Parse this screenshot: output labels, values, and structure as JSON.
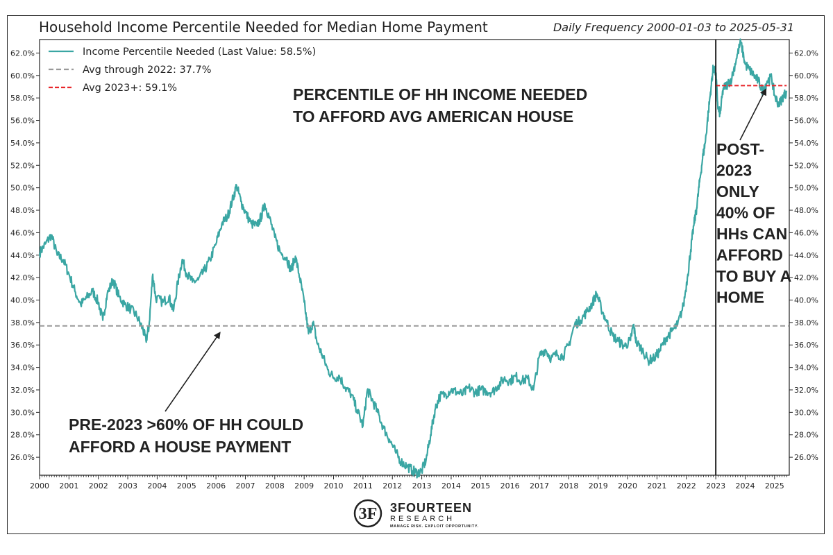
{
  "chart_data": {
    "type": "line",
    "title": "Household Income Percentile Needed for Median Home Payment",
    "subtitle": "Daily Frequency 2000-01-03 to 2025-05-31",
    "x_range": [
      "2000-01-03",
      "2025-05-31"
    ],
    "x_ticks": [
      "2000",
      "2001",
      "2002",
      "2003",
      "2004",
      "2005",
      "2006",
      "2007",
      "2008",
      "2009",
      "2010",
      "2011",
      "2012",
      "2013",
      "2014",
      "2015",
      "2016",
      "2017",
      "2018",
      "2019",
      "2020",
      "2021",
      "2022",
      "2023",
      "2024",
      "2025"
    ],
    "ylim": [
      24.4,
      63.2
    ],
    "y_ticks": [
      "26.0%",
      "28.0%",
      "30.0%",
      "32.0%",
      "34.0%",
      "36.0%",
      "38.0%",
      "40.0%",
      "42.0%",
      "44.0%",
      "46.0%",
      "48.0%",
      "50.0%",
      "52.0%",
      "54.0%",
      "56.0%",
      "58.0%",
      "60.0%",
      "62.0%"
    ],
    "y_tick_values": [
      26,
      28,
      30,
      32,
      34,
      36,
      38,
      40,
      42,
      44,
      46,
      48,
      50,
      52,
      54,
      56,
      58,
      60,
      62
    ],
    "y_axis_both_sides": true,
    "grid": false,
    "legend_position": "top-left",
    "series": [
      {
        "name": "Income Percentile Needed (Last Value: 58.5%)",
        "color": "#3aa6a3",
        "style": "solid",
        "points": [
          [
            2000.0,
            44.2
          ],
          [
            2000.2,
            45.0
          ],
          [
            2000.4,
            45.8
          ],
          [
            2000.6,
            44.0
          ],
          [
            2000.8,
            43.6
          ],
          [
            2001.0,
            42.3
          ],
          [
            2001.2,
            40.8
          ],
          [
            2001.4,
            39.6
          ],
          [
            2001.6,
            40.2
          ],
          [
            2001.8,
            40.8
          ],
          [
            2002.0,
            39.8
          ],
          [
            2002.15,
            38.2
          ],
          [
            2002.3,
            40.5
          ],
          [
            2002.5,
            41.8
          ],
          [
            2002.7,
            40.3
          ],
          [
            2002.9,
            39.6
          ],
          [
            2003.1,
            39.2
          ],
          [
            2003.3,
            38.6
          ],
          [
            2003.5,
            37.5
          ],
          [
            2003.62,
            36.4
          ],
          [
            2003.72,
            37.6
          ],
          [
            2003.85,
            42.3
          ],
          [
            2003.95,
            40.2
          ],
          [
            2004.2,
            39.8
          ],
          [
            2004.4,
            40.3
          ],
          [
            2004.55,
            39.0
          ],
          [
            2004.7,
            41.5
          ],
          [
            2004.85,
            43.6
          ],
          [
            2005.0,
            42.4
          ],
          [
            2005.2,
            41.6
          ],
          [
            2005.4,
            41.8
          ],
          [
            2005.6,
            42.6
          ],
          [
            2005.8,
            43.6
          ],
          [
            2006.0,
            45.0
          ],
          [
            2006.2,
            46.8
          ],
          [
            2006.4,
            47.5
          ],
          [
            2006.55,
            48.8
          ],
          [
            2006.7,
            50.2
          ],
          [
            2006.85,
            48.8
          ],
          [
            2007.0,
            47.8
          ],
          [
            2007.2,
            46.8
          ],
          [
            2007.4,
            46.6
          ],
          [
            2007.55,
            47.5
          ],
          [
            2007.65,
            48.6
          ],
          [
            2007.8,
            47.5
          ],
          [
            2008.0,
            45.6
          ],
          [
            2008.2,
            44.2
          ],
          [
            2008.4,
            43.8
          ],
          [
            2008.55,
            42.6
          ],
          [
            2008.7,
            43.9
          ],
          [
            2008.85,
            42.0
          ],
          [
            2009.0,
            39.8
          ],
          [
            2009.15,
            37.0
          ],
          [
            2009.3,
            38.0
          ],
          [
            2009.45,
            36.1
          ],
          [
            2009.6,
            35.2
          ],
          [
            2009.8,
            33.8
          ],
          [
            2010.0,
            33.1
          ],
          [
            2010.2,
            33.2
          ],
          [
            2010.4,
            32.2
          ],
          [
            2010.6,
            31.6
          ],
          [
            2010.8,
            30.2
          ],
          [
            2011.0,
            28.8
          ],
          [
            2011.15,
            32.0
          ],
          [
            2011.3,
            31.2
          ],
          [
            2011.5,
            30.0
          ],
          [
            2011.7,
            28.6
          ],
          [
            2011.9,
            27.6
          ],
          [
            2012.1,
            26.5
          ],
          [
            2012.3,
            25.6
          ],
          [
            2012.5,
            25.2
          ],
          [
            2012.7,
            24.8
          ],
          [
            2012.85,
            24.6
          ],
          [
            2013.0,
            24.8
          ],
          [
            2013.15,
            25.8
          ],
          [
            2013.3,
            28.0
          ],
          [
            2013.45,
            30.2
          ],
          [
            2013.6,
            31.4
          ],
          [
            2013.8,
            31.6
          ],
          [
            2014.0,
            32.0
          ],
          [
            2014.2,
            31.8
          ],
          [
            2014.4,
            31.6
          ],
          [
            2014.6,
            32.2
          ],
          [
            2014.8,
            31.8
          ],
          [
            2015.0,
            32.0
          ],
          [
            2015.2,
            31.9
          ],
          [
            2015.4,
            31.8
          ],
          [
            2015.6,
            32.4
          ],
          [
            2015.8,
            33.0
          ],
          [
            2016.0,
            32.8
          ],
          [
            2016.2,
            33.2
          ],
          [
            2016.4,
            32.8
          ],
          [
            2016.6,
            33.0
          ],
          [
            2016.8,
            32.0
          ],
          [
            2017.0,
            35.0
          ],
          [
            2017.2,
            35.6
          ],
          [
            2017.4,
            34.8
          ],
          [
            2017.6,
            35.2
          ],
          [
            2017.8,
            35.0
          ],
          [
            2018.0,
            36.0
          ],
          [
            2018.2,
            37.8
          ],
          [
            2018.4,
            38.2
          ],
          [
            2018.6,
            38.9
          ],
          [
            2018.8,
            39.7
          ],
          [
            2018.95,
            40.6
          ],
          [
            2019.1,
            39.3
          ],
          [
            2019.3,
            38.0
          ],
          [
            2019.5,
            36.8
          ],
          [
            2019.7,
            36.3
          ],
          [
            2019.9,
            35.9
          ],
          [
            2020.1,
            36.4
          ],
          [
            2020.2,
            37.8
          ],
          [
            2020.3,
            36.2
          ],
          [
            2020.5,
            35.6
          ],
          [
            2020.7,
            34.6
          ],
          [
            2020.9,
            34.8
          ],
          [
            2021.1,
            35.5
          ],
          [
            2021.3,
            36.6
          ],
          [
            2021.5,
            37.2
          ],
          [
            2021.7,
            37.8
          ],
          [
            2021.9,
            39.5
          ],
          [
            2022.05,
            42.3
          ],
          [
            2022.15,
            44.5
          ],
          [
            2022.25,
            46.6
          ],
          [
            2022.35,
            48.2
          ],
          [
            2022.45,
            50.5
          ],
          [
            2022.55,
            52.6
          ],
          [
            2022.65,
            54.2
          ],
          [
            2022.75,
            56.8
          ],
          [
            2022.85,
            59.2
          ],
          [
            2022.92,
            60.8
          ],
          [
            2023.0,
            60.2
          ],
          [
            2023.08,
            57.0
          ],
          [
            2023.15,
            56.6
          ],
          [
            2023.25,
            58.8
          ],
          [
            2023.4,
            59.2
          ],
          [
            2023.55,
            59.8
          ],
          [
            2023.7,
            61.5
          ],
          [
            2023.85,
            63.0
          ],
          [
            2024.0,
            61.0
          ],
          [
            2024.15,
            60.5
          ],
          [
            2024.3,
            60.0
          ],
          [
            2024.45,
            59.5
          ],
          [
            2024.6,
            58.6
          ],
          [
            2024.75,
            59.5
          ],
          [
            2024.9,
            59.8
          ],
          [
            2025.0,
            58.2
          ],
          [
            2025.15,
            57.4
          ],
          [
            2025.3,
            58.2
          ],
          [
            2025.41,
            58.5
          ]
        ]
      },
      {
        "name": "Avg through 2022: 37.7%",
        "color": "#999999",
        "style": "dashed",
        "value": 37.7,
        "x_from": 2000.0,
        "x_to": 2025.41
      },
      {
        "name": "Avg 2023+: 59.1%",
        "color": "#e8262b",
        "style": "dashed",
        "value": 59.1,
        "x_from": 2023.0,
        "x_to": 2025.41
      }
    ],
    "vertical_line_x": 2023.0,
    "annotations": [
      {
        "lines": [
          "PERCENTILE OF HH INCOME NEEDED",
          "TO AFFORD AVG AMERICAN HOUSE"
        ]
      },
      {
        "lines": [
          "PRE-2023 >60% OF HH COULD",
          "AFFORD A HOUSE PAYMENT"
        ],
        "arrow_to": [
          2006.2,
          37.7
        ]
      },
      {
        "lines": [
          "POST-",
          "2023",
          "ONLY",
          "40% OF",
          "HHs CAN",
          "AFFORD",
          "TO BUY A",
          "HOME"
        ],
        "arrow_to": [
          2024.7,
          59.0
        ]
      }
    ]
  },
  "logo": {
    "name": "3FOURTEEN",
    "sub": "RESEARCH",
    "tagline": "MANAGE RISK. EXPLOIT OPPORTUNITY."
  }
}
